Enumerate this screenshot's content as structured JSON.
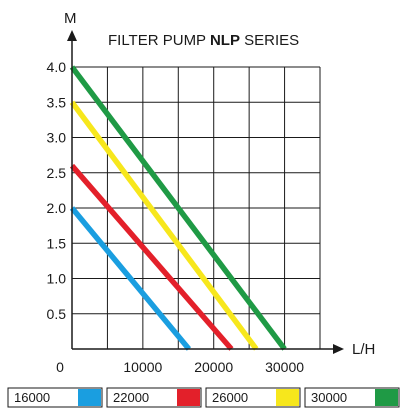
{
  "chart_data": {
    "type": "line",
    "title": {
      "prefix": "FILTER PUMP ",
      "emphasis": "NLP",
      "suffix": " SERIES"
    },
    "xlabel": "L/H",
    "ylabel": "M",
    "xlim": [
      0,
      35000
    ],
    "ylim": [
      0,
      4.0
    ],
    "x_ticks": [
      "0",
      "10000",
      "20000",
      "30000"
    ],
    "y_ticks": [
      "0.5",
      "1.0",
      "1.5",
      "2.0",
      "2.5",
      "3.0",
      "3.5",
      "4.0"
    ],
    "grid": true,
    "legend_position": "bottom",
    "series": [
      {
        "name": "16000",
        "color": "#1a9ee0",
        "x": [
          0,
          16500
        ],
        "y": [
          2.0,
          0
        ]
      },
      {
        "name": "22000",
        "color": "#e3202a",
        "x": [
          0,
          22500
        ],
        "y": [
          2.6,
          0
        ]
      },
      {
        "name": "26000",
        "color": "#f7e71c",
        "x": [
          0,
          26000
        ],
        "y": [
          3.5,
          0
        ]
      },
      {
        "name": "30000",
        "color": "#1f9a45",
        "x": [
          0,
          30000
        ],
        "y": [
          4.0,
          0
        ]
      }
    ]
  }
}
